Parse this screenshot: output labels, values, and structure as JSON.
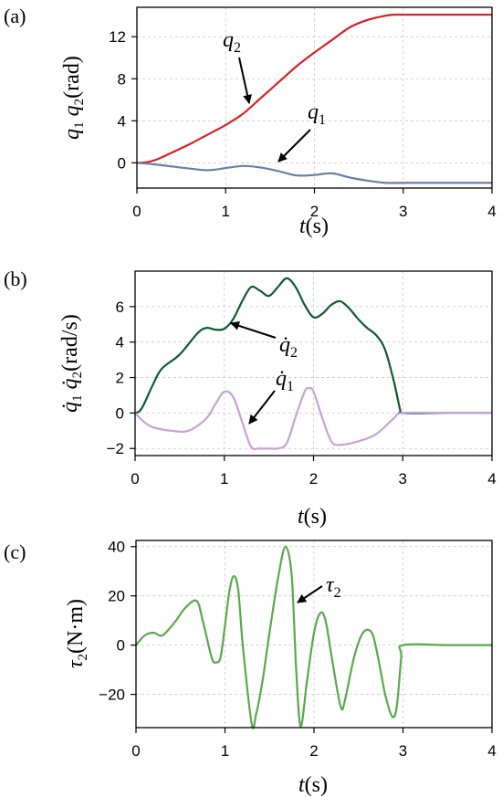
{
  "chart_data": [
    {
      "type": "line",
      "panel_label": "(a)",
      "ylabel": "q1 q2 (rad)",
      "xlabel": "t(s)",
      "xlim": [
        0,
        4
      ],
      "ylim": [
        -2,
        14
      ],
      "xticks": [
        "0",
        "1",
        "2",
        "3",
        "4"
      ],
      "yticks": [
        "0",
        "4",
        "8",
        "12"
      ],
      "grid": true,
      "series": [
        {
          "name": "q2",
          "color": "#d62027",
          "x": [
            0,
            0.1,
            0.2,
            0.3,
            0.4,
            0.6,
            0.8,
            1.0,
            1.2,
            1.4,
            1.6,
            1.8,
            2.0,
            2.2,
            2.4,
            2.6,
            2.8,
            2.9,
            3.0,
            3.5,
            4.0
          ],
          "y": [
            0,
            0.05,
            0.25,
            0.6,
            1.0,
            1.8,
            2.7,
            3.6,
            4.7,
            6.2,
            7.7,
            9.2,
            10.5,
            11.7,
            12.9,
            13.6,
            14.0,
            14.1,
            14.1,
            14.1,
            14.1
          ]
        },
        {
          "name": "q1",
          "color": "#6b7fa5",
          "x": [
            0,
            0.2,
            0.4,
            0.6,
            0.8,
            1.0,
            1.2,
            1.4,
            1.6,
            1.8,
            2.0,
            2.2,
            2.4,
            2.6,
            2.8,
            3.0,
            3.5,
            4.0
          ],
          "y": [
            0,
            -0.15,
            -0.35,
            -0.55,
            -0.7,
            -0.5,
            -0.3,
            -0.45,
            -0.8,
            -1.2,
            -1.15,
            -1.0,
            -1.4,
            -1.7,
            -1.9,
            -1.9,
            -1.9,
            -1.9
          ]
        }
      ]
    },
    {
      "type": "line",
      "panel_label": "(b)",
      "ylabel": "q̇1 q̇2 (rad/s)",
      "xlabel": "t(s)",
      "xlim": [
        0,
        4
      ],
      "ylim": [
        -2,
        8
      ],
      "xticks": [
        "0",
        "1",
        "2",
        "3",
        "4"
      ],
      "yticks": [
        "−2",
        "0",
        "2",
        "4",
        "6"
      ],
      "grid": true,
      "series": [
        {
          "name": "q̇2",
          "color": "#0f5a2e",
          "x": [
            0,
            0.05,
            0.1,
            0.2,
            0.3,
            0.5,
            0.7,
            0.8,
            0.9,
            1.0,
            1.1,
            1.2,
            1.3,
            1.4,
            1.5,
            1.6,
            1.7,
            1.8,
            1.9,
            2.0,
            2.1,
            2.2,
            2.3,
            2.4,
            2.5,
            2.6,
            2.7,
            2.8,
            2.9,
            2.97,
            3.0,
            3.5,
            4.0
          ],
          "y": [
            0,
            0.1,
            0.5,
            1.6,
            2.5,
            3.3,
            4.5,
            4.8,
            4.7,
            4.75,
            5.3,
            6.3,
            7.1,
            6.9,
            6.6,
            7.1,
            7.6,
            7.1,
            6.1,
            5.4,
            5.6,
            6.1,
            6.3,
            5.9,
            5.3,
            4.8,
            4.4,
            3.6,
            1.8,
            0.2,
            0,
            0,
            0
          ]
        },
        {
          "name": "q̇1",
          "color": "#c5a3d5",
          "x": [
            0,
            0.1,
            0.2,
            0.4,
            0.6,
            0.8,
            0.9,
            1.0,
            1.1,
            1.2,
            1.3,
            1.4,
            1.5,
            1.6,
            1.7,
            1.8,
            1.9,
            1.95,
            2.0,
            2.1,
            2.2,
            2.3,
            2.5,
            2.7,
            2.9,
            3.0,
            3.5,
            4.0
          ],
          "y": [
            0,
            -0.5,
            -0.8,
            -1.0,
            -1.0,
            -0.3,
            0.5,
            1.2,
            0.9,
            -0.5,
            -1.9,
            -2.0,
            -2.0,
            -2.0,
            -1.7,
            -0.2,
            1.2,
            1.4,
            1.2,
            -0.3,
            -1.6,
            -1.8,
            -1.6,
            -1.2,
            -0.3,
            0,
            0,
            0
          ]
        }
      ]
    },
    {
      "type": "line",
      "panel_label": "(c)",
      "ylabel": "τ2 (N·m)",
      "xlabel": "t(s)",
      "xlim": [
        0,
        4
      ],
      "ylim": [
        -33,
        42
      ],
      "xticks": [
        "0",
        "1",
        "2",
        "3",
        "4"
      ],
      "yticks": [
        "−20",
        "0",
        "20",
        "40"
      ],
      "grid": true,
      "series": [
        {
          "name": "τ2",
          "color": "#5aa84c",
          "x": [
            0,
            0.1,
            0.2,
            0.3,
            0.45,
            0.55,
            0.68,
            0.75,
            0.85,
            0.9,
            0.95,
            1.0,
            1.05,
            1.1,
            1.15,
            1.2,
            1.3,
            1.35,
            1.42,
            1.5,
            1.6,
            1.68,
            1.75,
            1.8,
            1.85,
            1.92,
            2.0,
            2.07,
            2.13,
            2.2,
            2.3,
            2.35,
            2.45,
            2.55,
            2.65,
            2.72,
            2.8,
            2.88,
            2.93,
            2.98,
            3.0,
            3.5,
            4.0
          ],
          "y": [
            0,
            4,
            5,
            4,
            10,
            15,
            18,
            10,
            -5,
            -7,
            -5,
            8,
            22,
            28,
            22,
            0,
            -32,
            -28,
            -15,
            5,
            28,
            40,
            28,
            -10,
            -33,
            -15,
            5,
            13,
            10,
            -5,
            -25,
            -22,
            -5,
            5,
            5,
            -5,
            -20,
            -29,
            -25,
            -5,
            0,
            0,
            0
          ]
        }
      ]
    }
  ],
  "annotations": {
    "a_q2": "q2",
    "a_q1": "q1",
    "b_q2": "q̇2",
    "b_q1": "q̇1",
    "c_tau2": "τ2"
  }
}
